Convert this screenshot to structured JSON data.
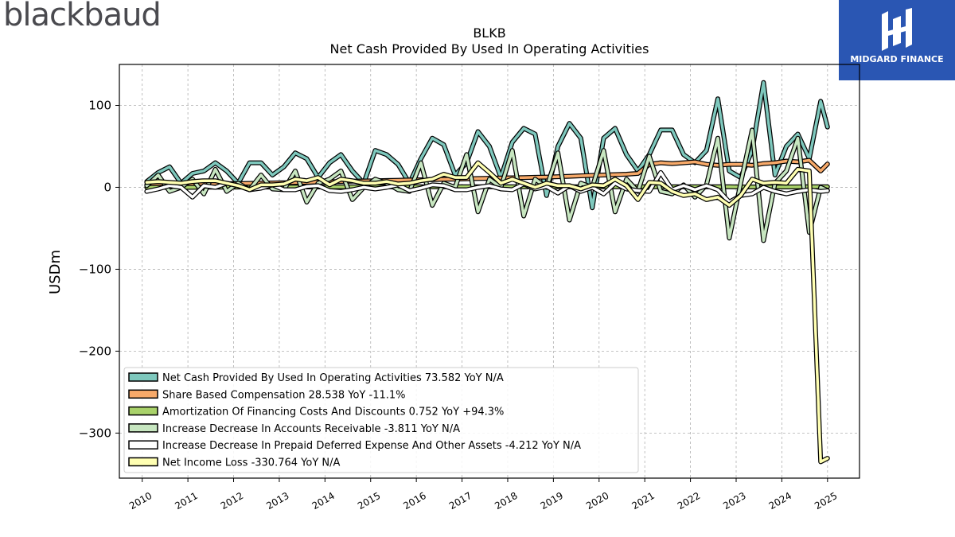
{
  "header": {
    "brand": "blackbaud",
    "logo_text": "MIDGARD FINANCE",
    "title": "BLKB",
    "subtitle": "Net Cash Provided By Used In Operating Activities"
  },
  "chart_data": {
    "type": "line",
    "title": "BLKB",
    "subtitle": "Net Cash Provided By Used In Operating Activities",
    "xlabel": "",
    "ylabel": "USDm",
    "xlim": [
      2009.5,
      2025.7
    ],
    "ylim": [
      -355,
      150
    ],
    "yticks": [
      100,
      0,
      -100,
      -200,
      -300
    ],
    "ytick_labels": [
      "100",
      "0",
      "−100",
      "−200",
      "−300"
    ],
    "xticks": [
      2010,
      2011,
      2012,
      2013,
      2014,
      2015,
      2016,
      2017,
      2018,
      2019,
      2020,
      2021,
      2022,
      2023,
      2024,
      2025
    ],
    "xtick_labels": [
      "2010",
      "2011",
      "2012",
      "2013",
      "2014",
      "2015",
      "2016",
      "2017",
      "2018",
      "2019",
      "2020",
      "2021",
      "2022",
      "2023",
      "2024",
      "2025"
    ],
    "grid": true,
    "legend_position": "lower-left",
    "x": [
      2010.1,
      2010.35,
      2010.6,
      2010.85,
      2011.1,
      2011.35,
      2011.6,
      2011.85,
      2012.1,
      2012.35,
      2012.6,
      2012.85,
      2013.1,
      2013.35,
      2013.6,
      2013.85,
      2014.1,
      2014.35,
      2014.6,
      2014.85,
      2015.1,
      2015.35,
      2015.6,
      2015.85,
      2016.1,
      2016.35,
      2016.6,
      2016.85,
      2017.1,
      2017.35,
      2017.6,
      2017.85,
      2018.1,
      2018.35,
      2018.6,
      2018.85,
      2019.1,
      2019.35,
      2019.6,
      2019.85,
      2020.1,
      2020.35,
      2020.6,
      2020.85,
      2021.1,
      2021.35,
      2021.6,
      2021.85,
      2022.1,
      2022.35,
      2022.6,
      2022.85,
      2023.1,
      2023.35,
      2023.6,
      2023.85,
      2024.1,
      2024.35,
      2024.6,
      2024.85,
      2025.0
    ],
    "series": [
      {
        "name": "Net Cash Provided By Used In Operating Activities",
        "legend": "Net Cash Provided By Used In Operating Activities  73.582 YoY N/A",
        "color": "#7ec8bd",
        "values": [
          7,
          18,
          25,
          5,
          17,
          20,
          30,
          20,
          5,
          30,
          30,
          15,
          25,
          42,
          35,
          12,
          30,
          40,
          20,
          5,
          45,
          40,
          28,
          5,
          35,
          60,
          52,
          15,
          30,
          68,
          50,
          12,
          55,
          72,
          65,
          -10,
          50,
          78,
          60,
          -25,
          60,
          72,
          40,
          20,
          40,
          70,
          70,
          40,
          30,
          45,
          108,
          20,
          12,
          45,
          128,
          15,
          50,
          65,
          35,
          105,
          73.6
        ]
      },
      {
        "name": "Share Based Compensation",
        "legend": "Share Based Compensation  28.538 YoY -11.1%",
        "color": "#f7a969",
        "values": [
          3,
          3.2,
          3.4,
          3.6,
          3.8,
          4,
          4.2,
          4.4,
          4.6,
          4.8,
          5,
          5.3,
          5.6,
          5.9,
          6.2,
          6.5,
          6.8,
          7.1,
          7.4,
          7.7,
          8,
          8.3,
          8.6,
          8.9,
          9.2,
          9.5,
          9.8,
          10.1,
          10.4,
          10.7,
          11,
          11.3,
          11.6,
          11.9,
          12.2,
          12.5,
          13,
          13.5,
          14,
          14.5,
          15,
          15.5,
          16,
          17,
          28,
          30,
          29,
          30,
          31,
          28,
          27,
          28,
          28,
          27,
          29,
          30,
          32,
          31,
          33,
          20,
          28.5
        ]
      },
      {
        "name": "Amortization Of Financing Costs And Discounts",
        "legend": "Amortization Of Financing Costs And Discounts  0.752 YoY +94.3%",
        "color": "#a9d26a",
        "values": [
          0,
          0,
          0,
          0,
          0,
          0.2,
          0.2,
          0.2,
          0.3,
          0.3,
          0.3,
          0.3,
          0.4,
          0.4,
          0.4,
          0.4,
          0.4,
          0.5,
          0.5,
          0.5,
          0.5,
          0.5,
          0.5,
          0.5,
          0.6,
          0.6,
          0.6,
          0.6,
          0.6,
          0.6,
          0.6,
          0.6,
          0.7,
          0.7,
          0.7,
          0.7,
          0.7,
          0.7,
          0.7,
          0.7,
          0.7,
          0.7,
          0.7,
          0.7,
          0.7,
          0.7,
          0.7,
          0.7,
          0.7,
          0.7,
          0.7,
          0.7,
          0.4,
          0.4,
          0.4,
          0.4,
          0.4,
          0.5,
          0.6,
          0.7,
          0.75
        ]
      },
      {
        "name": "Increase Decrease In Accounts Receivable",
        "legend": "Increase Decrease In Accounts Receivable  -3.811 YoY N/A",
        "color": "#c7e6c0",
        "values": [
          2,
          15,
          -5,
          0,
          10,
          -8,
          22,
          -5,
          5,
          -3,
          15,
          -2,
          -3,
          20,
          -18,
          5,
          10,
          20,
          -15,
          0,
          10,
          5,
          -3,
          -5,
          30,
          -22,
          5,
          0,
          40,
          -30,
          10,
          0,
          45,
          -35,
          10,
          0,
          42,
          -40,
          5,
          0,
          45,
          -30,
          10,
          -5,
          38,
          -5,
          -8,
          3,
          -12,
          3,
          60,
          -62,
          5,
          70,
          -65,
          5,
          20,
          60,
          -55,
          0,
          -3.8
        ]
      },
      {
        "name": "Increase Decrease In Prepaid Deferred Expense And Other Assets",
        "legend": "Increase Decrease In Prepaid Deferred Expense And Other Assets  -4.212 YoY N/A",
        "color": "#ffffff",
        "values": [
          -5,
          -2,
          2,
          0,
          -12,
          2,
          0,
          5,
          2,
          -3,
          -1,
          3,
          -3,
          -3,
          1,
          2,
          -4,
          -5,
          -3,
          0,
          -2,
          0,
          3,
          -4,
          -1,
          3,
          2,
          -3,
          -3,
          0,
          2,
          -2,
          -3,
          4,
          -2,
          1,
          -7,
          2,
          -5,
          0,
          -8,
          5,
          -2,
          -4,
          -5,
          18,
          -3,
          2,
          -3,
          2,
          -3,
          -18,
          -10,
          -8,
          0,
          -5,
          -8,
          -5,
          -3,
          -5,
          -4.2
        ]
      },
      {
        "name": "Net Income Loss",
        "legend": "Net Income Loss  -330.764 YoY N/A",
        "color": "#ffffb2",
        "values": [
          6,
          7,
          6,
          5,
          7,
          8,
          8,
          5,
          2,
          -3,
          3,
          3,
          4,
          10,
          8,
          12,
          3,
          10,
          8,
          5,
          5,
          7,
          4,
          5,
          8,
          10,
          16,
          12,
          12,
          30,
          18,
          5,
          10,
          5,
          0,
          5,
          2,
          2,
          -2,
          3,
          2,
          10,
          2,
          -15,
          6,
          5,
          -5,
          -10,
          -8,
          -15,
          -12,
          -22,
          -10,
          10,
          5,
          6,
          5,
          22,
          20,
          -335,
          -330.8
        ]
      }
    ]
  }
}
